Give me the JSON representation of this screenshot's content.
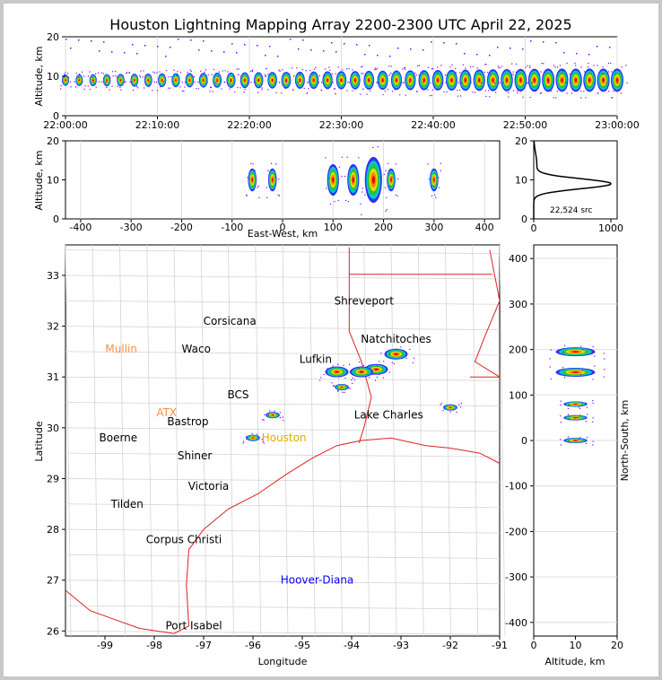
{
  "chart_data": {
    "title": "Houston Lightning Mapping Array 2200-2300 UTC April 22, 2025",
    "time_altitude": {
      "type": "scatter",
      "ylabel": "Altitude, km",
      "ylim": [
        0,
        20
      ],
      "yticks": [
        "0",
        "10",
        "20"
      ],
      "xticks": [
        "22:00:00",
        "22:10:00",
        "22:20:00",
        "22:30:00",
        "22:40:00",
        "22:50:00",
        "23:00:00"
      ],
      "xlim_minutes": [
        0,
        60
      ]
    },
    "ew_altitude": {
      "type": "scatter",
      "xlabel": "East-West, km",
      "ylabel": "Altitude, km",
      "xlim": [
        -430,
        430
      ],
      "ylim": [
        0,
        20
      ],
      "xticks": [
        "-400",
        "-300",
        "-200",
        "-100",
        "0",
        "100",
        "200",
        "300",
        "400"
      ],
      "yticks": [
        "0",
        "10",
        "20"
      ],
      "clusters_x_km": [
        -60,
        -20,
        100,
        140,
        180,
        215,
        300
      ]
    },
    "altitude_histogram": {
      "type": "line",
      "xticks": [
        "0",
        "1000"
      ],
      "yticks": [
        "0",
        "10",
        "20"
      ],
      "annotation": "22,524 src",
      "peak_altitude_km": 9,
      "peak_count": 1000
    },
    "plan_view": {
      "type": "scatter",
      "xlabel": "Longitude",
      "ylabel": "Latitude",
      "xlim": [
        -99.8,
        -91
      ],
      "ylim": [
        25.9,
        33.6
      ],
      "xticks": [
        "-99",
        "-98",
        "-97",
        "-96",
        "-95",
        "-94",
        "-93",
        "-92",
        "-91"
      ],
      "yticks": [
        "26",
        "27",
        "28",
        "29",
        "30",
        "31",
        "32",
        "33"
      ],
      "cities": [
        {
          "name": "Shreveport",
          "lon": -93.75,
          "lat": 32.5,
          "color": "#000000"
        },
        {
          "name": "Corsicana",
          "lon": -96.47,
          "lat": 32.1,
          "color": "#000000"
        },
        {
          "name": "Natchitoches",
          "lon": -93.1,
          "lat": 31.75,
          "color": "#000000"
        },
        {
          "name": "Mullin",
          "lon": -98.67,
          "lat": 31.55,
          "color": "#ff8c3c"
        },
        {
          "name": "Waco",
          "lon": -97.15,
          "lat": 31.55,
          "color": "#000000"
        },
        {
          "name": "Lufkin",
          "lon": -94.73,
          "lat": 31.35,
          "color": "#000000"
        },
        {
          "name": "BCS",
          "lon": -96.3,
          "lat": 30.65,
          "color": "#000000"
        },
        {
          "name": "ATX",
          "lon": -97.75,
          "lat": 30.3,
          "color": "#ff8c3c"
        },
        {
          "name": "Lake Charles",
          "lon": -93.25,
          "lat": 30.25,
          "color": "#000000"
        },
        {
          "name": "Bastrop",
          "lon": -97.32,
          "lat": 30.12,
          "color": "#000000"
        },
        {
          "name": "Houston",
          "lon": -95.37,
          "lat": 29.8,
          "color": "#e6a800"
        },
        {
          "name": "Boerne",
          "lon": -98.73,
          "lat": 29.8,
          "color": "#000000"
        },
        {
          "name": "Shiner",
          "lon": -97.18,
          "lat": 29.45,
          "color": "#000000"
        },
        {
          "name": "Victoria",
          "lon": -96.9,
          "lat": 28.85,
          "color": "#000000"
        },
        {
          "name": "Tilden",
          "lon": -98.55,
          "lat": 28.5,
          "color": "#000000"
        },
        {
          "name": "Corpus Christi",
          "lon": -97.4,
          "lat": 27.8,
          "color": "#000000"
        },
        {
          "name": "Hoover-Diana",
          "lon": -94.7,
          "lat": 27.0,
          "color": "#0000ff"
        },
        {
          "name": "Port Isabel",
          "lon": -97.2,
          "lat": 26.1,
          "color": "#000000"
        }
      ],
      "storm_cells": [
        {
          "lon": -93.1,
          "lat": 31.45
        },
        {
          "lon": -93.5,
          "lat": 31.15
        },
        {
          "lon": -93.8,
          "lat": 31.1
        },
        {
          "lon": -94.3,
          "lat": 31.1
        },
        {
          "lon": -94.2,
          "lat": 30.8
        },
        {
          "lon": -92.0,
          "lat": 30.4
        },
        {
          "lon": -95.6,
          "lat": 30.25
        },
        {
          "lon": -96.0,
          "lat": 29.8
        }
      ]
    },
    "ns_altitude": {
      "type": "scatter",
      "xlabel": "Altitude, km",
      "ylabel": "North-South, km",
      "xlim": [
        0,
        20
      ],
      "ylim": [
        -430,
        430
      ],
      "xticks": [
        "0",
        "10",
        "20"
      ],
      "yticks": [
        "400",
        "300",
        "200",
        "100",
        "0",
        "-100",
        "-200",
        "-300",
        "-400"
      ],
      "clusters_y_km": [
        195,
        150,
        80,
        50,
        0
      ]
    }
  }
}
